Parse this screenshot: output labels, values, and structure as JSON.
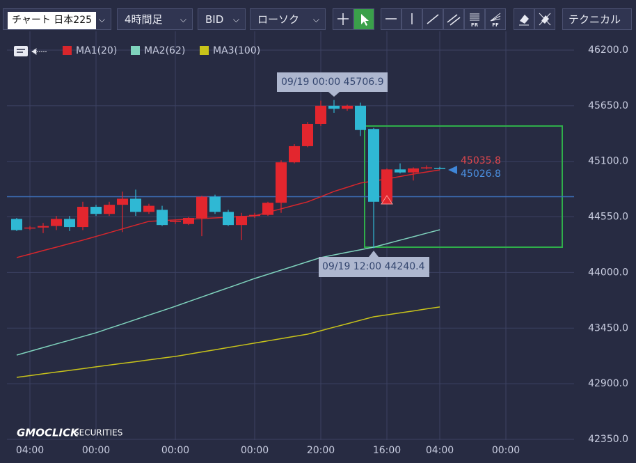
{
  "toolbar": {
    "symbol": "チャート 日本225",
    "interval": "4時間足",
    "side": "BID",
    "style": "ローソク",
    "tool_fr": "FR",
    "tool_ff": "FF",
    "technical": "テクニカル"
  },
  "chart_data": {
    "type": "candlestick",
    "categories": [
      null,
      "04:00",
      null,
      null,
      null,
      null,
      "00:00",
      null,
      null,
      null,
      null,
      null,
      "00:00",
      null,
      null,
      null,
      null,
      null,
      "00:00",
      null,
      null,
      null,
      null,
      "20:00",
      null,
      null,
      null,
      null,
      "16:00",
      null,
      null,
      null,
      "04:00",
      null,
      null,
      null,
      null,
      "00:00",
      null,
      null,
      null,
      null
    ],
    "open": [
      44530,
      44440,
      44445,
      44460,
      44530,
      44450,
      44650,
      44580,
      44670,
      44730,
      44600,
      44620,
      44500,
      44480,
      44540,
      44750,
      44600,
      44470,
      44560,
      44570,
      44690,
      45090,
      45250,
      45470,
      45650,
      45620,
      45650,
      45420,
      44700,
      45020,
      44990,
      45030,
      45036,
      null,
      null,
      null,
      null,
      null,
      null,
      null,
      null,
      null
    ],
    "high": [
      44540,
      44460,
      44490,
      44560,
      44560,
      44700,
      44670,
      44700,
      44800,
      44820,
      44680,
      44660,
      44520,
      44550,
      44760,
      44770,
      44620,
      44590,
      44590,
      44700,
      45110,
      45270,
      45490,
      45700,
      45706.9,
      45660,
      45680,
      45430,
      45030,
      45080,
      45040,
      45060,
      45045,
      null,
      null,
      null,
      null,
      null,
      null,
      null,
      null,
      null
    ],
    "low": [
      44410,
      44420,
      44390,
      44420,
      44410,
      44420,
      44560,
      44560,
      44400,
      44560,
      44580,
      44460,
      44480,
      44470,
      44360,
      44580,
      44460,
      44320,
      44540,
      44560,
      44590,
      45080,
      45240,
      45450,
      45580,
      45600,
      45350,
      44240.4,
      44690,
      44980,
      44910,
      45020,
      45020,
      null,
      null,
      null,
      null,
      null,
      null,
      null,
      null,
      null
    ],
    "close": [
      44420,
      44445,
      44460,
      44530,
      44450,
      44650,
      44580,
      44670,
      44730,
      44600,
      44660,
      44470,
      44510,
      44540,
      44750,
      44600,
      44470,
      44560,
      44570,
      44690,
      45090,
      45250,
      45470,
      45650,
      45620,
      45650,
      45410,
      44700,
      45020,
      44990,
      45030,
      45040,
      45026.8,
      null,
      null,
      null,
      null,
      null,
      null,
      null,
      null,
      null
    ],
    "up_color": "#e3262e",
    "down_color": "#2fb8d4",
    "series": [
      {
        "name": "MA1(20)",
        "color": "#d8262c",
        "values": [
          44148,
          44182,
          44217,
          44251,
          44286,
          44320,
          44357,
          44394,
          44432,
          44469,
          44506,
          44513,
          44520,
          44527,
          44534,
          44540,
          44547,
          44554,
          44561,
          44596,
          44630,
          44665,
          44699,
          44750,
          44802,
          44843,
          44885,
          44905,
          44926,
          44950,
          44974,
          44995,
          45015,
          null,
          null,
          null,
          null,
          null,
          null,
          null,
          null,
          null
        ]
      },
      {
        "name": "MA2(62)",
        "color": "#7fd3bd",
        "values": [
          43183,
          43220,
          43257,
          43294,
          43330,
          43367,
          43404,
          43448,
          43491,
          43535,
          43579,
          43622,
          43666,
          43712,
          43758,
          43804,
          43849,
          43895,
          43941,
          43982,
          44024,
          44065,
          44107,
          44148,
          44174,
          44200,
          44225,
          44251,
          44285,
          44320,
          44354,
          44389,
          44423,
          null,
          null,
          null,
          null,
          null,
          null,
          null,
          null,
          null
        ]
      },
      {
        "name": "MA3(100)",
        "color": "#c9c41a",
        "values": [
          42963,
          42980,
          42998,
          43015,
          43032,
          43049,
          43067,
          43084,
          43101,
          43118,
          43136,
          43153,
          43170,
          43192,
          43214,
          43236,
          43258,
          43280,
          43302,
          43324,
          43346,
          43368,
          43390,
          43424,
          43459,
          43493,
          43528,
          43562,
          43581,
          43601,
          43620,
          43640,
          43659,
          null,
          null,
          null,
          null,
          null,
          null,
          null,
          null,
          null
        ]
      }
    ],
    "hline": 44750,
    "ylim": [
      42150,
      46386
    ],
    "yticks": [
      {
        "value": 42350,
        "label": "42350.0"
      },
      {
        "value": 42900,
        "label": "42900.0"
      },
      {
        "value": 43450,
        "label": "43450.0"
      },
      {
        "value": 44000,
        "label": "44000.0"
      },
      {
        "value": 44550,
        "label": "44550.0"
      },
      {
        "value": 45100,
        "label": "45100.0"
      },
      {
        "value": 45650,
        "label": "45650.0"
      },
      {
        "value": 46200,
        "label": "46200.0"
      }
    ],
    "grid": true,
    "annotations": {
      "high_tip": "09/19 00:00 45706.9",
      "low_tip": "09/19 12:00 44240.4",
      "ask": "45035.8",
      "bid": "45026.8"
    },
    "watermark": {
      "brand": "GMOCLICK",
      "sub": "SECURITIES"
    }
  }
}
